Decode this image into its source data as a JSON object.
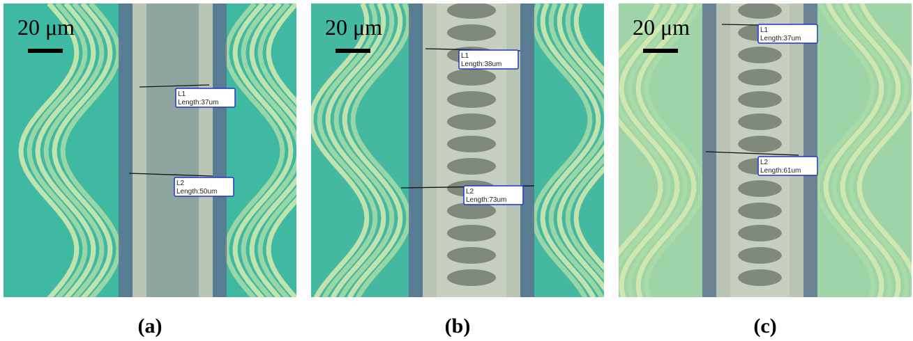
{
  "panels": [
    {
      "scale_label": "20 μm",
      "measurements": [
        {
          "name": "L1",
          "length": "Length:37um"
        },
        {
          "name": "L2",
          "length": "Length:50um"
        }
      ],
      "caption": "(a)"
    },
    {
      "scale_label": "20 μm",
      "measurements": [
        {
          "name": "L1",
          "length": "Length:38um"
        },
        {
          "name": "L2",
          "length": "Length:73um"
        }
      ],
      "caption": "(b)"
    },
    {
      "scale_label": "20 μm",
      "measurements": [
        {
          "name": "L1",
          "length": "Length:37um"
        },
        {
          "name": "L2",
          "length": "Length:61um"
        }
      ],
      "caption": "(c)"
    }
  ]
}
